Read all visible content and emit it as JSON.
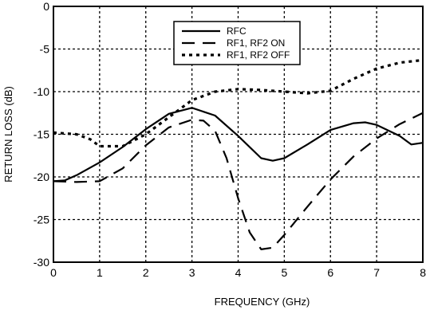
{
  "chart_data": {
    "type": "line",
    "xlabel": "FREQUENCY (GHz)",
    "ylabel": "RETURN LOSS (dB)",
    "xlim": [
      0,
      8
    ],
    "ylim": [
      -30,
      0
    ],
    "x_ticks": [
      0,
      1,
      2,
      3,
      4,
      5,
      6,
      7,
      8
    ],
    "y_ticks": [
      0,
      -5,
      -10,
      -15,
      -20,
      -25,
      -30
    ],
    "grid": true,
    "legend_position": "top-center",
    "series": [
      {
        "name": "RFC",
        "style": "solid",
        "color": "#000000",
        "x": [
          0,
          0.25,
          0.5,
          1.0,
          1.5,
          2.0,
          2.5,
          3.0,
          3.5,
          4.0,
          4.5,
          4.75,
          5.0,
          5.5,
          6.0,
          6.5,
          6.75,
          7.0,
          7.5,
          7.75,
          8.0
        ],
        "y": [
          -20.5,
          -20.4,
          -19.8,
          -18.3,
          -16.5,
          -14.4,
          -12.6,
          -11.9,
          -12.8,
          -15.2,
          -17.8,
          -18.1,
          -17.8,
          -16.2,
          -14.5,
          -13.7,
          -13.6,
          -13.9,
          -15.2,
          -16.2,
          -16.0
        ]
      },
      {
        "name": "RF1, RF2 ON",
        "style": "dashed",
        "color": "#000000",
        "x": [
          0,
          0.5,
          1.0,
          1.5,
          2.0,
          2.5,
          3.0,
          3.25,
          3.5,
          3.75,
          4.0,
          4.25,
          4.5,
          4.75,
          5.0,
          5.5,
          6.0,
          6.5,
          7.0,
          7.5,
          8.0
        ],
        "y": [
          -20.5,
          -20.6,
          -20.5,
          -19.0,
          -16.3,
          -14.2,
          -13.3,
          -13.4,
          -14.6,
          -17.8,
          -22.5,
          -26.5,
          -28.5,
          -28.3,
          -26.8,
          -23.5,
          -20.3,
          -17.6,
          -15.5,
          -13.8,
          -12.5
        ]
      },
      {
        "name": "RF1, RF2 OFF",
        "style": "dotted",
        "color": "#000000",
        "x": [
          0,
          0.5,
          0.8,
          1.0,
          1.5,
          2.0,
          2.5,
          2.8,
          3.0,
          3.5,
          4.0,
          4.5,
          5.0,
          5.5,
          6.0,
          6.5,
          7.0,
          7.5,
          8.0
        ],
        "y": [
          -14.8,
          -15.0,
          -15.6,
          -16.4,
          -16.4,
          -15.0,
          -13.0,
          -11.8,
          -11.0,
          -10.0,
          -9.7,
          -9.8,
          -10.0,
          -10.2,
          -9.9,
          -8.5,
          -7.3,
          -6.6,
          -6.3
        ]
      }
    ]
  }
}
